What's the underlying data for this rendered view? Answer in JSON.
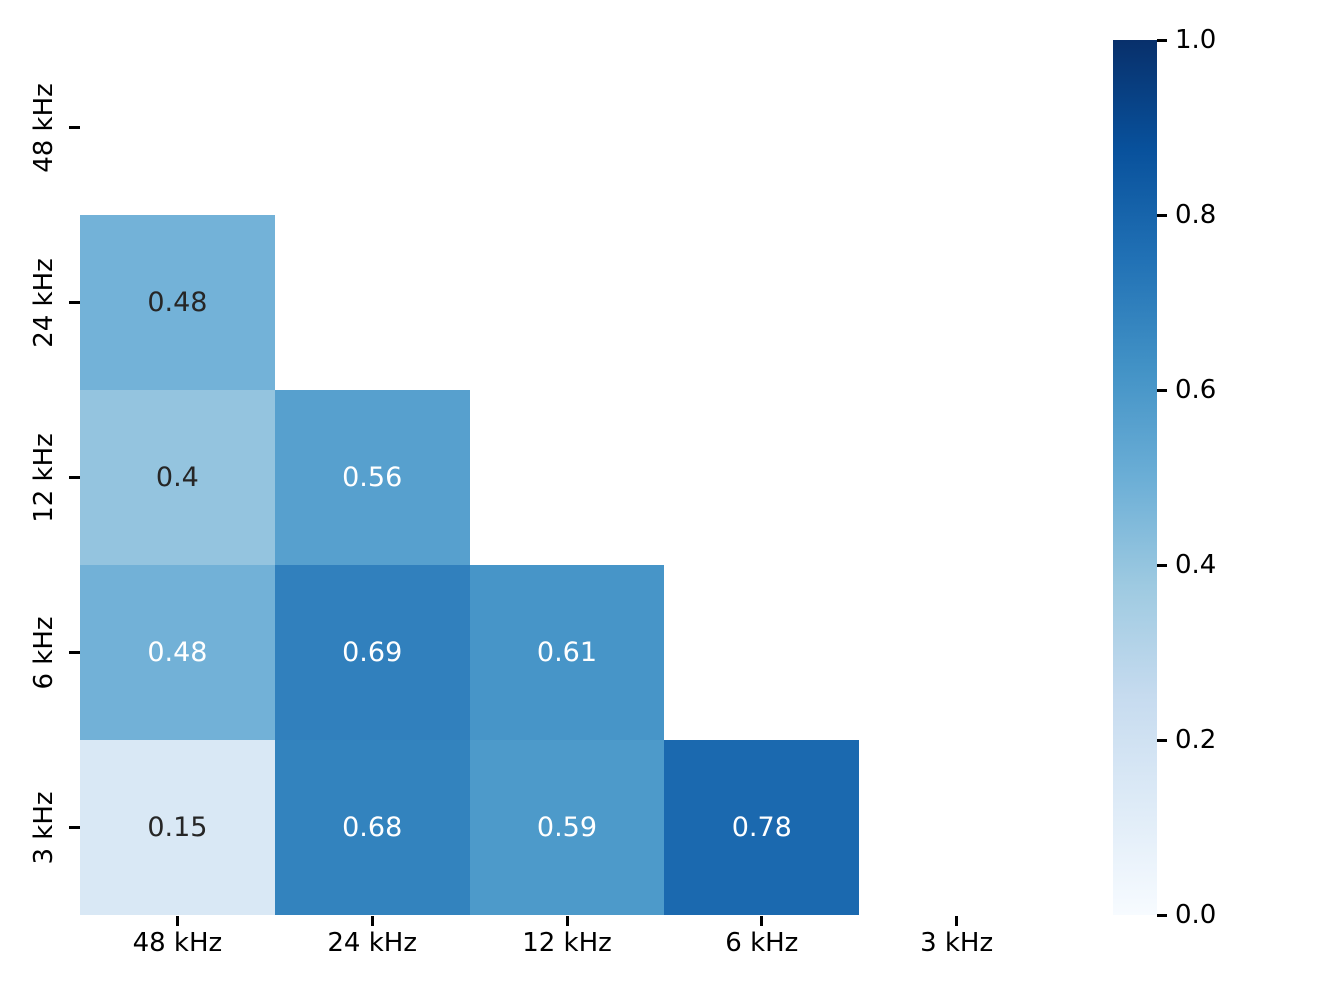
{
  "figure": {
    "background": "#ffffff"
  },
  "chart_data": {
    "type": "heatmap",
    "title": "",
    "xlabel": "",
    "ylabel": "",
    "colormap": "Blues",
    "vmin": 0.0,
    "vmax": 1.0,
    "mask": "upper-triangle-and-diagonal-hidden",
    "x_categories": [
      "48 kHz",
      "24 kHz",
      "12 kHz",
      "6 kHz",
      "3 kHz"
    ],
    "y_categories": [
      "48 kHz",
      "24 kHz",
      "12 kHz",
      "6 kHz",
      "3 kHz"
    ],
    "matrix": [
      [
        null,
        null,
        null,
        null,
        null
      ],
      [
        0.48,
        null,
        null,
        null,
        null
      ],
      [
        0.4,
        0.56,
        null,
        null,
        null
      ],
      [
        0.48,
        0.69,
        0.61,
        null,
        null
      ],
      [
        0.15,
        0.68,
        0.59,
        0.78,
        null
      ]
    ],
    "cells": [
      {
        "row": 1,
        "col": 0,
        "value": 0.48,
        "label": "0.48",
        "bg": "#73b2d8",
        "fg": "#262626"
      },
      {
        "row": 2,
        "col": 0,
        "value": 0.4,
        "label": "0.4",
        "bg": "#94c4df",
        "fg": "#262626"
      },
      {
        "row": 2,
        "col": 1,
        "value": 0.56,
        "label": "0.56",
        "bg": "#57a0ce",
        "fg": "#ffffff"
      },
      {
        "row": 3,
        "col": 0,
        "value": 0.48,
        "label": "0.48",
        "bg": "#72b1d7",
        "fg": "#ffffff"
      },
      {
        "row": 3,
        "col": 1,
        "value": 0.69,
        "label": "0.69",
        "bg": "#3180bd",
        "fg": "#ffffff"
      },
      {
        "row": 3,
        "col": 2,
        "value": 0.61,
        "label": "0.61",
        "bg": "#4795c8",
        "fg": "#ffffff"
      },
      {
        "row": 4,
        "col": 0,
        "value": 0.15,
        "label": "0.15",
        "bg": "#d9e8f5",
        "fg": "#262626"
      },
      {
        "row": 4,
        "col": 1,
        "value": 0.68,
        "label": "0.68",
        "bg": "#3383be",
        "fg": "#ffffff"
      },
      {
        "row": 4,
        "col": 2,
        "value": 0.59,
        "label": "0.59",
        "bg": "#4d9aca",
        "fg": "#ffffff"
      },
      {
        "row": 4,
        "col": 3,
        "value": 0.78,
        "label": "0.78",
        "bg": "#1b69af",
        "fg": "#ffffff"
      }
    ],
    "colorbar": {
      "orientation": "vertical",
      "ticks": [
        {
          "label": "1.0",
          "value": 1.0
        },
        {
          "label": "0.8",
          "value": 0.8
        },
        {
          "label": "0.6",
          "value": 0.6
        },
        {
          "label": "0.4",
          "value": 0.4
        },
        {
          "label": "0.2",
          "value": 0.2
        },
        {
          "label": "0.0",
          "value": 0.0
        }
      ],
      "gradient_stops": [
        {
          "pos": 0.0,
          "color": "#f7fbff"
        },
        {
          "pos": 0.125,
          "color": "#deebf7"
        },
        {
          "pos": 0.25,
          "color": "#c6dbef"
        },
        {
          "pos": 0.375,
          "color": "#9ecae1"
        },
        {
          "pos": 0.5,
          "color": "#6baed6"
        },
        {
          "pos": 0.625,
          "color": "#4292c6"
        },
        {
          "pos": 0.75,
          "color": "#2171b5"
        },
        {
          "pos": 0.875,
          "color": "#08519c"
        },
        {
          "pos": 1.0,
          "color": "#08306b"
        }
      ]
    },
    "legend": null,
    "grid": false
  }
}
